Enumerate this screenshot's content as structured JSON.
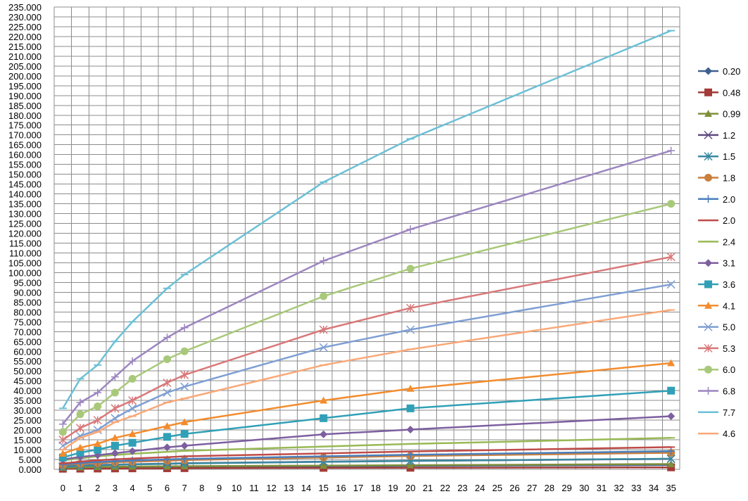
{
  "chart_data": {
    "type": "line",
    "title": "",
    "xlabel": "",
    "ylabel": "",
    "x_ticks": [
      0,
      1,
      2,
      3,
      4,
      5,
      6,
      7,
      8,
      9,
      10,
      11,
      12,
      13,
      14,
      15,
      16,
      17,
      18,
      19,
      20,
      21,
      22,
      23,
      24,
      25,
      26,
      27,
      28,
      29,
      30,
      31,
      32,
      33,
      34,
      35
    ],
    "ylim": [
      0,
      235
    ],
    "y_tick_step": 5,
    "y_tick_labels": [
      "0.000",
      "5.000",
      "10.000",
      "15.000",
      "20.000",
      "25.000",
      "30.000",
      "35.000",
      "40.000",
      "45.000",
      "50.000",
      "55.000",
      "60.000",
      "65.000",
      "70.000",
      "75.000",
      "80.000",
      "85.000",
      "90.000",
      "95.000",
      "100.000",
      "105.000",
      "110.000",
      "115.000",
      "120.000",
      "125.000",
      "130.000",
      "135.000",
      "140.000",
      "145.000",
      "150.000",
      "155.000",
      "160.000",
      "165.000",
      "170.000",
      "175.000",
      "180.000",
      "185.000",
      "190.000",
      "195.000",
      "200.000",
      "205.000",
      "210.000",
      "215.000",
      "220.000",
      "225.000",
      "230.000",
      "235.000"
    ],
    "grid": true,
    "legend_position": "right",
    "x": [
      0,
      1,
      2,
      3,
      4,
      6,
      7,
      15,
      20,
      35
    ],
    "series": [
      {
        "name": "0.20",
        "color": "#3F5F8F",
        "marker": "diamond",
        "values": [
          0.6,
          0.7,
          0.8,
          0.9,
          1.0,
          1.1,
          1.2,
          1.5,
          1.8,
          2.2
        ]
      },
      {
        "name": "0.48",
        "color": "#A33B38",
        "marker": "square",
        "values": [
          0.3,
          0.35,
          0.4,
          0.45,
          0.5,
          0.55,
          0.6,
          0.75,
          0.8,
          1.0
        ]
      },
      {
        "name": "0.99",
        "color": "#7F8F3A",
        "marker": "triangle",
        "values": [
          0.8,
          1.0,
          1.2,
          1.3,
          1.4,
          1.5,
          1.6,
          1.9,
          2.1,
          2.7
        ]
      },
      {
        "name": "1.2",
        "color": "#5F4B80",
        "marker": "x",
        "values": [
          1.5,
          1.9,
          2.2,
          2.4,
          2.6,
          2.9,
          3.1,
          3.9,
          4.3,
          5.3
        ]
      },
      {
        "name": "1.5",
        "color": "#3A8AA0",
        "marker": "star",
        "values": [
          1.3,
          1.7,
          2.0,
          2.3,
          2.5,
          2.8,
          3.0,
          3.8,
          4.3,
          5.4
        ]
      },
      {
        "name": "1.8",
        "color": "#C97F3D",
        "marker": "circle",
        "values": [
          2.2,
          2.8,
          3.2,
          3.6,
          3.9,
          4.4,
          4.7,
          6.0,
          6.8,
          8.4
        ]
      },
      {
        "name": "2.0",
        "color": "#4A7EBB",
        "marker": "plus",
        "values": [
          2.5,
          3.2,
          3.7,
          4.1,
          4.5,
          5.0,
          5.3,
          6.6,
          7.4,
          9.2
        ]
      },
      {
        "name": "2.0",
        "color": "#BE4B48",
        "marker": "dash",
        "values": [
          3.0,
          3.9,
          4.6,
          5.1,
          5.5,
          6.2,
          6.6,
          8.1,
          9.1,
          11.3
        ]
      },
      {
        "name": "2.4",
        "color": "#98B954",
        "marker": "dash",
        "values": [
          4.5,
          5.7,
          6.6,
          7.3,
          7.9,
          8.9,
          9.4,
          11.6,
          12.9,
          16.0
        ]
      },
      {
        "name": "3.1",
        "color": "#7D5FA0",
        "marker": "diamond",
        "values": [
          5.0,
          6.3,
          7.2,
          8.2,
          9.2,
          11.2,
          12.0,
          17.8,
          20.2,
          27.0
        ]
      },
      {
        "name": "3.6",
        "color": "#31A0B6",
        "marker": "square",
        "values": [
          6.0,
          8.5,
          10.0,
          12.0,
          13.5,
          16.5,
          18.0,
          26.0,
          31.0,
          40.0
        ]
      },
      {
        "name": "4.1",
        "color": "#F28C2E",
        "marker": "triangle",
        "values": [
          8.0,
          11.0,
          13.0,
          16.0,
          18.0,
          22.0,
          24.0,
          35.0,
          41.0,
          54.0
        ]
      },
      {
        "name": "5.0",
        "color": "#7F9FD3",
        "marker": "x",
        "values": [
          12.0,
          17.0,
          20.0,
          26.0,
          31.0,
          39.0,
          42.0,
          62.0,
          71.0,
          94.0
        ]
      },
      {
        "name": "5.3",
        "color": "#D9797A",
        "marker": "star",
        "values": [
          15.0,
          21.0,
          25.0,
          31.0,
          35.0,
          44.0,
          48.0,
          71.0,
          82.0,
          108.0
        ]
      },
      {
        "name": "6.0",
        "color": "#A9C97A",
        "marker": "circle",
        "values": [
          19.0,
          28.0,
          32.0,
          39.0,
          46.0,
          56.0,
          60.0,
          88.0,
          102.0,
          135.0
        ]
      },
      {
        "name": "6.8",
        "color": "#9C86C0",
        "marker": "plus",
        "values": [
          23.0,
          34.0,
          39.0,
          47.0,
          55.0,
          67.0,
          72.0,
          106.0,
          122.0,
          162.0
        ]
      },
      {
        "name": "7.7",
        "color": "#6CC0D6",
        "marker": "dash",
        "values": [
          31.0,
          46.0,
          53.0,
          65.0,
          75.0,
          92.0,
          99.0,
          146.0,
          168.0,
          223.0
        ]
      },
      {
        "name": "4.6",
        "color": "#F9A878",
        "marker": "dash",
        "values": [
          10.0,
          16.0,
          19.0,
          24.0,
          27.0,
          34.0,
          36.0,
          53.0,
          61.0,
          81.0
        ]
      }
    ]
  }
}
